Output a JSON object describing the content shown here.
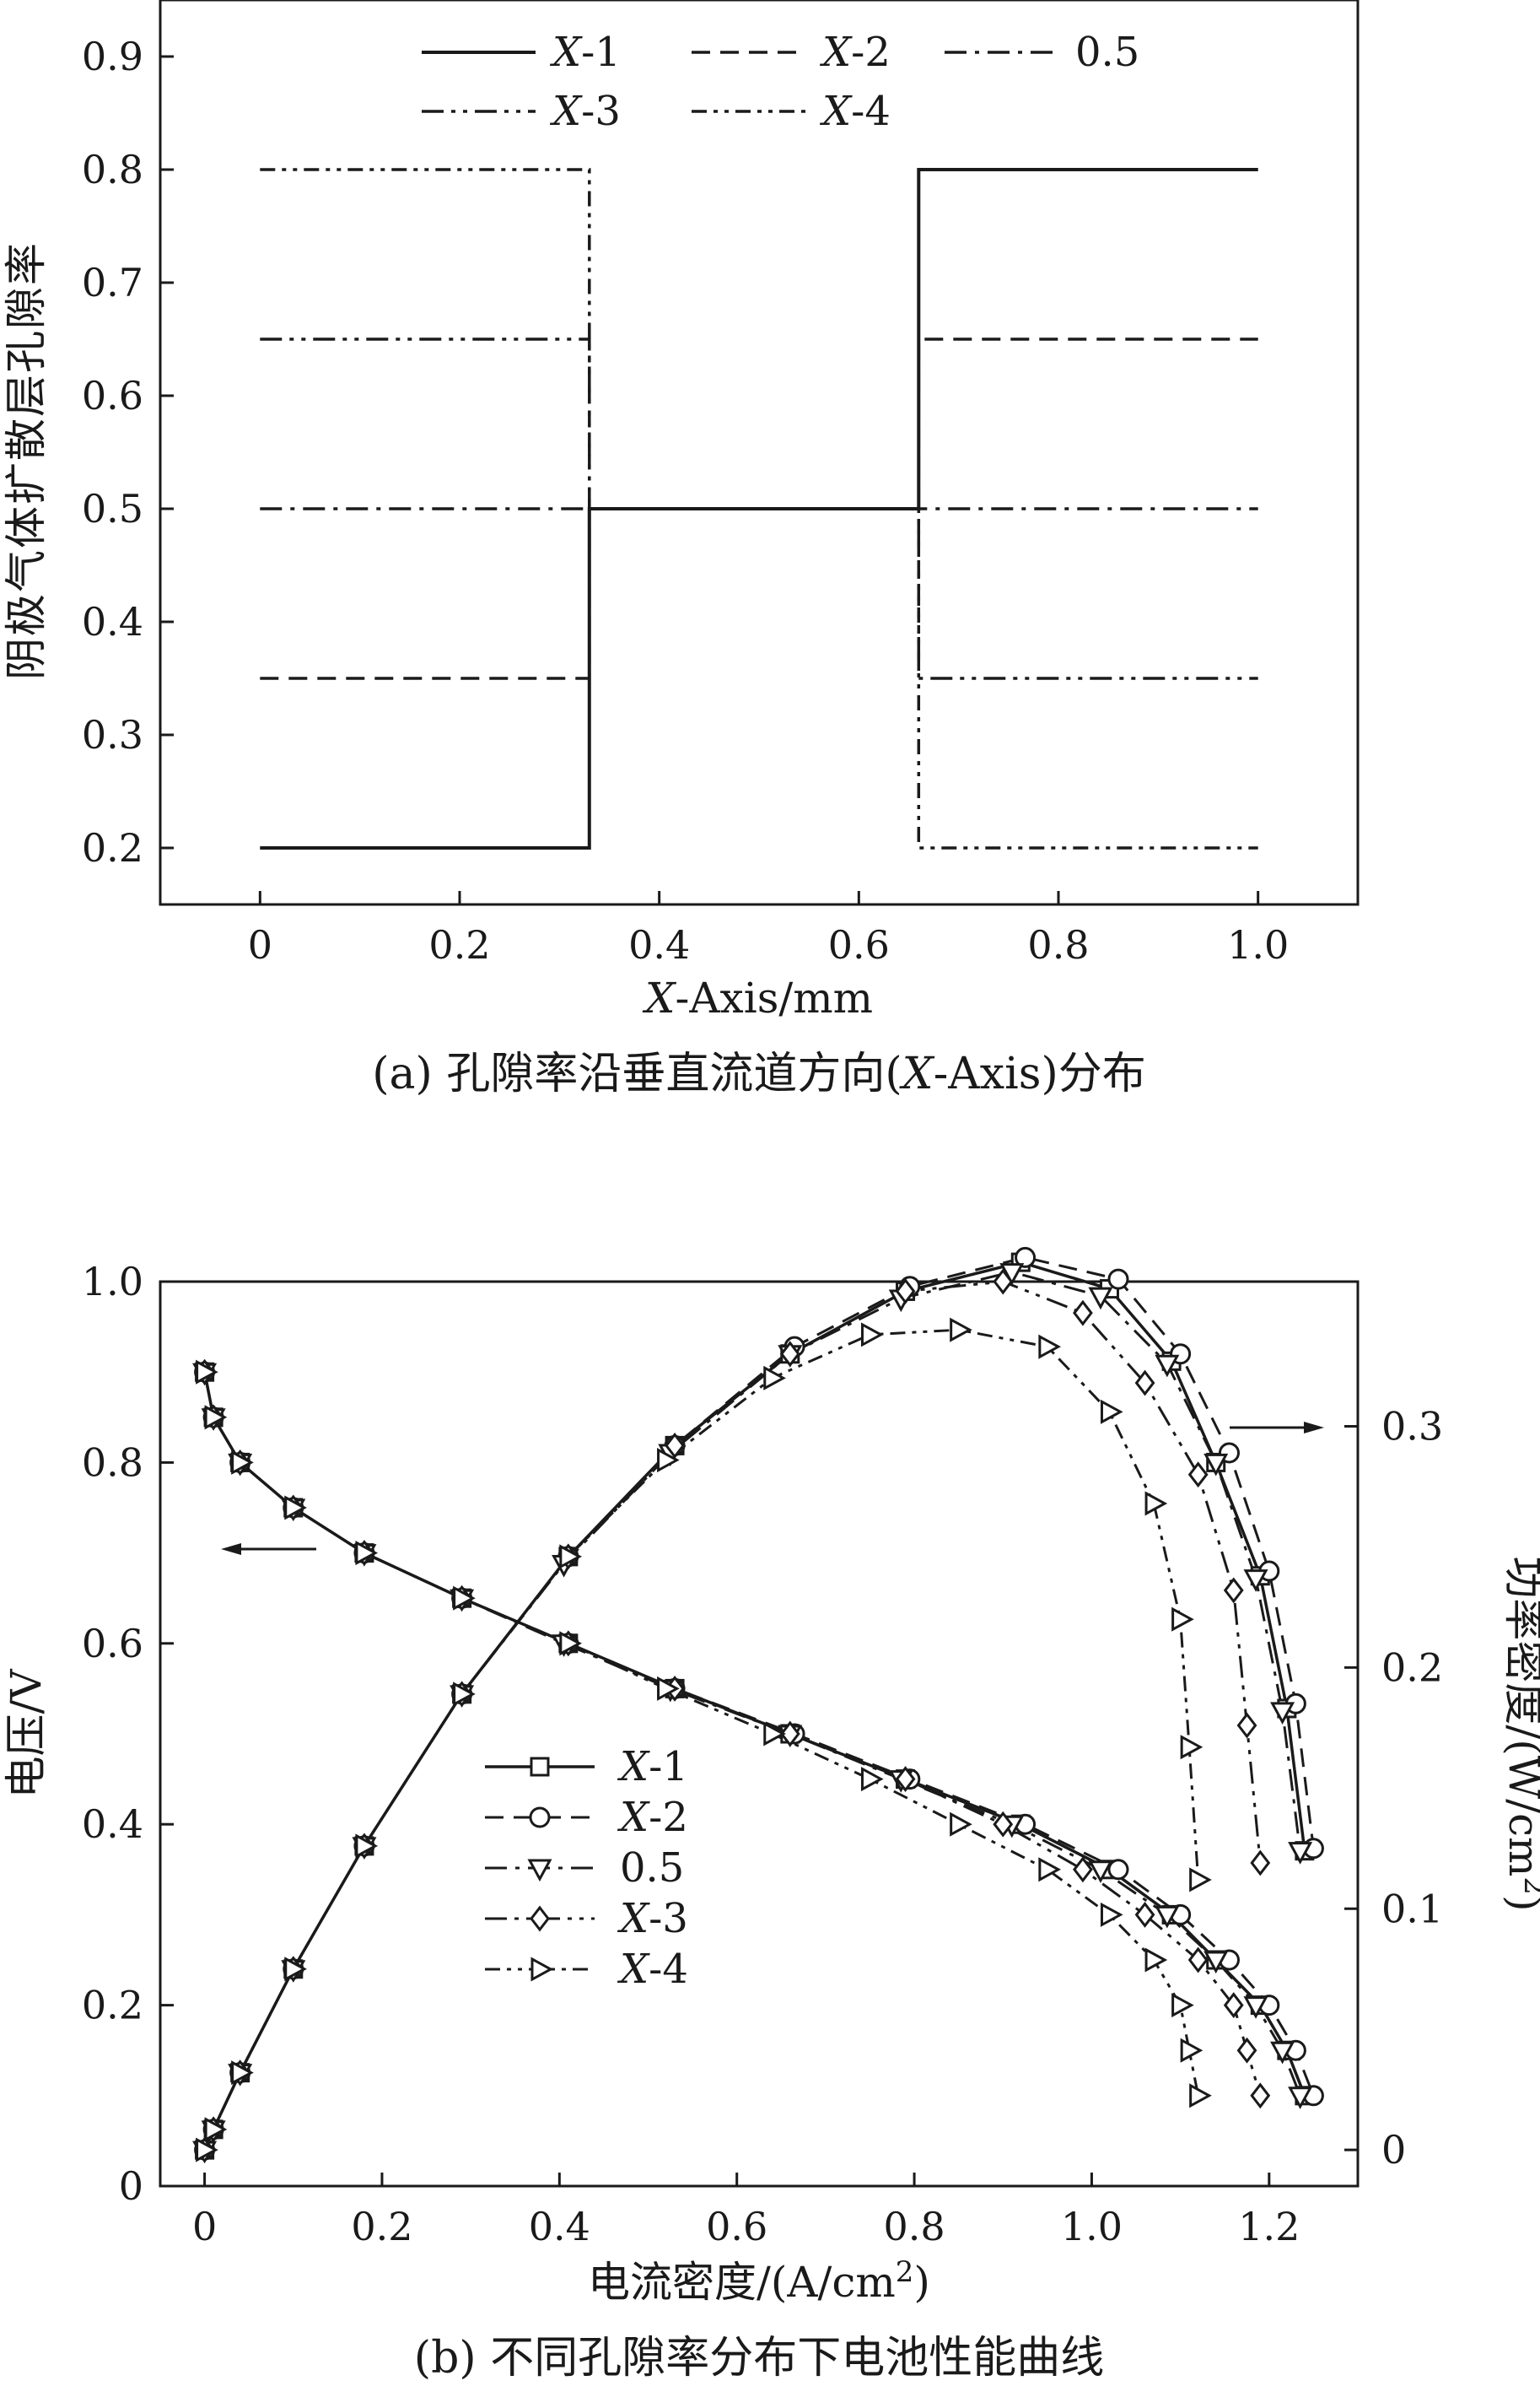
{
  "chart_data": [
    {
      "type": "line",
      "xlabel_italic": "X",
      "xlabel_rest": "-Axis/mm",
      "ylabel": "阴极气体扩散层孔隙率",
      "caption_pre": "(a) 孔隙率沿垂直流道方向(",
      "caption_italic": "X",
      "caption_post": "-Axis)分布",
      "xlim": [
        -0.1,
        1.1
      ],
      "ylim": [
        0.15,
        0.95
      ],
      "xticks": [
        "0",
        "0.2",
        "0.4",
        "0.6",
        "0.8",
        "1.0"
      ],
      "yticks": [
        "0.2",
        "0.3",
        "0.4",
        "0.5",
        "0.6",
        "0.7",
        "0.8",
        "0.9"
      ],
      "legend_position": "top",
      "series": [
        {
          "name_italic": "X",
          "name_rest": "-1",
          "dash": "solid",
          "x": [
            0,
            0.33,
            0.33,
            0.66,
            0.66,
            1.0
          ],
          "y": [
            0.2,
            0.2,
            0.5,
            0.5,
            0.8,
            0.8
          ]
        },
        {
          "name_italic": "X",
          "name_rest": "-2",
          "dash": "dash",
          "x": [
            0,
            0.33,
            0.33,
            0.66,
            0.66,
            1.0
          ],
          "y": [
            0.35,
            0.35,
            0.5,
            0.5,
            0.65,
            0.65
          ]
        },
        {
          "name_italic": "",
          "name_rest": "0.5",
          "dash": "dashdot",
          "x": [
            0,
            1.0
          ],
          "y": [
            0.5,
            0.5
          ]
        },
        {
          "name_italic": "X",
          "name_rest": "-3",
          "dash": "dashdotdot",
          "x": [
            0,
            0.33,
            0.33,
            0.66,
            0.66,
            1.0
          ],
          "y": [
            0.65,
            0.65,
            0.5,
            0.5,
            0.35,
            0.35
          ]
        },
        {
          "name_italic": "X",
          "name_rest": "-4",
          "dash": "dashdotdot2",
          "x": [
            0,
            0.33,
            0.33,
            0.66,
            0.66,
            1.0
          ],
          "y": [
            0.8,
            0.8,
            0.5,
            0.5,
            0.2,
            0.2
          ]
        }
      ]
    },
    {
      "type": "line",
      "xlabel": "电流密度/(A/cm",
      "xlabel_sup": "2",
      "xlabel_end": ")",
      "ylabel": "电压/V",
      "y2label": "功率密度/(W/cm",
      "y2label_sup": "2",
      "y2label_end": ")",
      "caption": "(b) 不同孔隙率分布下电池性能曲线",
      "xlim": [
        -0.05,
        1.3
      ],
      "ylim": [
        0,
        1.0
      ],
      "y2lim": [
        -0.015,
        0.36
      ],
      "xticks": [
        "0",
        "0.2",
        "0.4",
        "0.6",
        "0.8",
        "1.0",
        "1.2"
      ],
      "yticks": [
        "0",
        "0.2",
        "0.4",
        "0.6",
        "0.8",
        "1.0"
      ],
      "y2ticks": [
        "0",
        "0.1",
        "0.2",
        "0.3"
      ],
      "legend_position": "lower-left",
      "series": [
        {
          "name_italic": "X",
          "name_rest": "-1",
          "dash": "solid",
          "marker": "square",
          "x": [
            0,
            0.01,
            0.04,
            0.1,
            0.18,
            0.29,
            0.41,
            0.53,
            0.66,
            0.79,
            0.92,
            1.02,
            1.09,
            1.14,
            1.19,
            1.22,
            1.24
          ],
          "v": [
            0.9,
            0.85,
            0.8,
            0.75,
            0.7,
            0.65,
            0.6,
            0.55,
            0.5,
            0.45,
            0.4,
            0.35,
            0.3,
            0.25,
            0.2,
            0.15,
            0.1
          ],
          "p": [
            0,
            0.0085,
            0.032,
            0.075,
            0.126,
            0.189,
            0.246,
            0.292,
            0.33,
            0.356,
            0.368,
            0.357,
            0.327,
            0.285,
            0.238,
            0.183,
            0.124
          ]
        },
        {
          "name_italic": "X",
          "name_rest": "-2",
          "dash": "dash",
          "marker": "circle",
          "x": [
            0,
            0.01,
            0.04,
            0.1,
            0.18,
            0.29,
            0.41,
            0.53,
            0.665,
            0.795,
            0.925,
            1.03,
            1.1,
            1.155,
            1.2,
            1.23,
            1.25
          ],
          "v": [
            0.9,
            0.85,
            0.8,
            0.75,
            0.7,
            0.65,
            0.6,
            0.55,
            0.5,
            0.45,
            0.4,
            0.35,
            0.3,
            0.25,
            0.2,
            0.15,
            0.1
          ],
          "p": [
            0,
            0.0085,
            0.032,
            0.075,
            0.126,
            0.189,
            0.246,
            0.292,
            0.333,
            0.358,
            0.37,
            0.361,
            0.33,
            0.289,
            0.24,
            0.185,
            0.125
          ]
        },
        {
          "name_italic": "",
          "name_rest": "0.5",
          "dash": "dashdot",
          "marker": "triangle-down",
          "x": [
            0,
            0.01,
            0.04,
            0.1,
            0.18,
            0.29,
            0.405,
            0.525,
            0.66,
            0.785,
            0.91,
            1.01,
            1.085,
            1.14,
            1.185,
            1.215,
            1.235
          ],
          "v": [
            0.9,
            0.85,
            0.8,
            0.75,
            0.7,
            0.65,
            0.6,
            0.55,
            0.5,
            0.45,
            0.4,
            0.35,
            0.3,
            0.25,
            0.2,
            0.15,
            0.1
          ],
          "p": [
            0,
            0.0085,
            0.032,
            0.075,
            0.126,
            0.189,
            0.243,
            0.289,
            0.33,
            0.353,
            0.364,
            0.354,
            0.326,
            0.285,
            0.237,
            0.182,
            0.124
          ]
        },
        {
          "name_italic": "X",
          "name_rest": "-3",
          "dash": "dashdotdot",
          "marker": "diamond",
          "x": [
            0,
            0.01,
            0.04,
            0.1,
            0.18,
            0.29,
            0.41,
            0.53,
            0.66,
            0.79,
            0.9,
            0.99,
            1.06,
            1.12,
            1.16,
            1.175,
            1.19
          ],
          "v": [
            0.9,
            0.85,
            0.8,
            0.75,
            0.7,
            0.65,
            0.6,
            0.55,
            0.5,
            0.45,
            0.4,
            0.35,
            0.3,
            0.25,
            0.2,
            0.15,
            0.1
          ],
          "p": [
            0,
            0.0085,
            0.032,
            0.075,
            0.126,
            0.189,
            0.246,
            0.292,
            0.33,
            0.356,
            0.36,
            0.347,
            0.318,
            0.28,
            0.232,
            0.176,
            0.119
          ]
        },
        {
          "name_italic": "X",
          "name_rest": "-4",
          "dash": "dashdotdot2",
          "marker": "triangle-right",
          "x": [
            0,
            0.01,
            0.04,
            0.1,
            0.18,
            0.29,
            0.41,
            0.52,
            0.64,
            0.75,
            0.85,
            0.95,
            1.02,
            1.07,
            1.1,
            1.11,
            1.12
          ],
          "v": [
            0.9,
            0.85,
            0.8,
            0.75,
            0.7,
            0.65,
            0.6,
            0.55,
            0.5,
            0.45,
            0.4,
            0.35,
            0.3,
            0.25,
            0.2,
            0.15,
            0.1
          ],
          "p": [
            0,
            0.0085,
            0.032,
            0.075,
            0.126,
            0.189,
            0.246,
            0.286,
            0.32,
            0.338,
            0.34,
            0.333,
            0.306,
            0.268,
            0.22,
            0.167,
            0.112
          ]
        }
      ]
    }
  ]
}
